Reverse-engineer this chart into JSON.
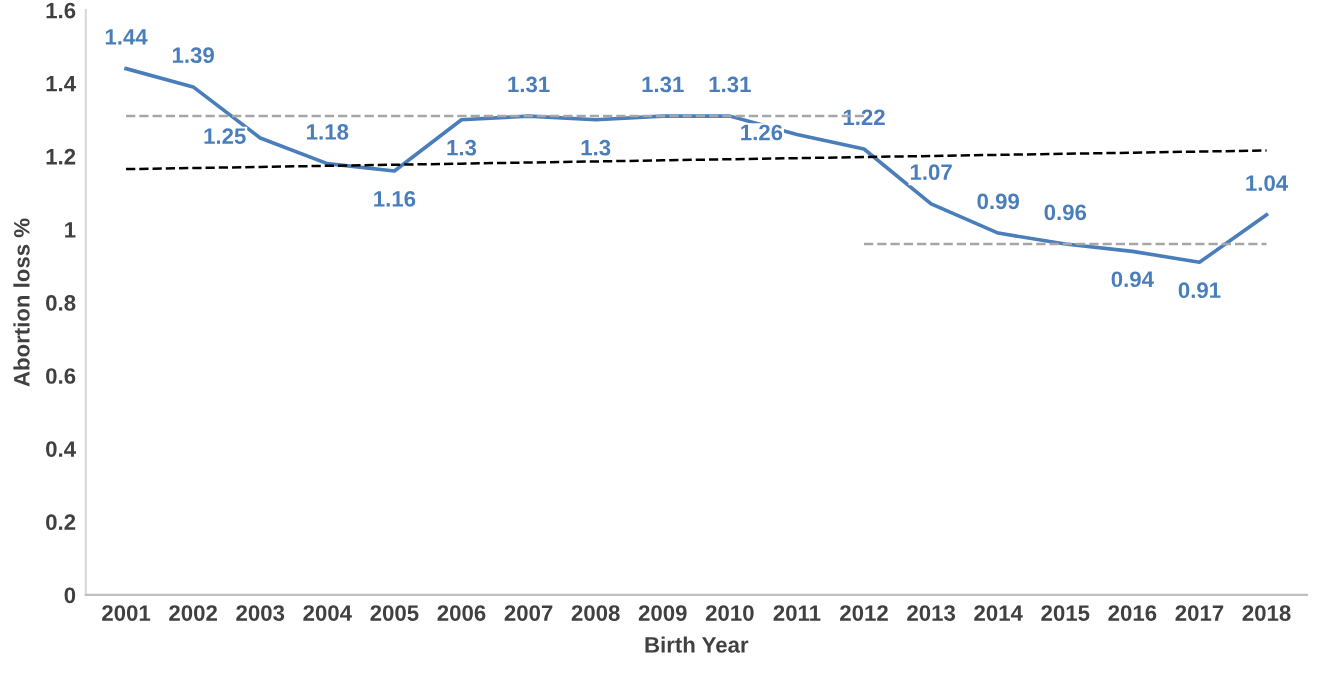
{
  "chart_data": {
    "type": "line",
    "xlabel": "Birth Year",
    "ylabel": "Abortion loss %",
    "categories": [
      "2001",
      "2002",
      "2003",
      "2004",
      "2005",
      "2006",
      "2007",
      "2008",
      "2009",
      "2010",
      "2011",
      "2012",
      "2013",
      "2014",
      "2015",
      "2016",
      "2017",
      "2018"
    ],
    "series": [
      {
        "color": "#4a7ebb",
        "values": [
          1.44,
          1.39,
          1.25,
          1.18,
          1.16,
          1.3,
          1.31,
          1.3,
          1.31,
          1.31,
          1.26,
          1.22,
          1.07,
          0.99,
          0.96,
          0.94,
          0.91,
          1.04
        ],
        "value_labels": [
          "1.44",
          "1.39",
          "1.25",
          "1.18",
          "1.16",
          "1.3",
          "1.31",
          "1.3",
          "1.31",
          "1.31",
          "1.26",
          "1.22",
          "1.07",
          "0.99",
          "0.96",
          "0.94",
          "0.91",
          "1.04"
        ]
      },
      {
        "type": "line",
        "color": "#000000",
        "line_style": "dashed",
        "values": [
          1.165,
          1.168,
          1.171,
          1.174,
          1.177,
          1.18,
          1.183,
          1.186,
          1.189,
          1.192,
          1.195,
          1.198,
          1.201,
          1.204,
          1.207,
          1.21,
          1.213,
          1.216
        ]
      },
      {
        "type": "line",
        "color": "#a6a6a6",
        "line_style": "dashed",
        "values": [
          1.31,
          1.31,
          1.31,
          1.31,
          1.31,
          1.31,
          1.31,
          1.31,
          1.31,
          1.31,
          1.31,
          1.31,
          null,
          null,
          null,
          null,
          null,
          null
        ]
      },
      {
        "type": "line",
        "color": "#a6a6a6",
        "line_style": "dashed",
        "values": [
          null,
          null,
          null,
          null,
          null,
          null,
          null,
          null,
          null,
          null,
          null,
          0.96,
          0.96,
          0.96,
          0.96,
          0.96,
          0.96,
          0.96
        ]
      }
    ],
    "ylim": [
      0,
      1.6
    ],
    "yticks": [
      0,
      0.2,
      0.4,
      0.6,
      0.8,
      1,
      1.2,
      1.4,
      1.6
    ],
    "grid": false,
    "legend": false
  }
}
